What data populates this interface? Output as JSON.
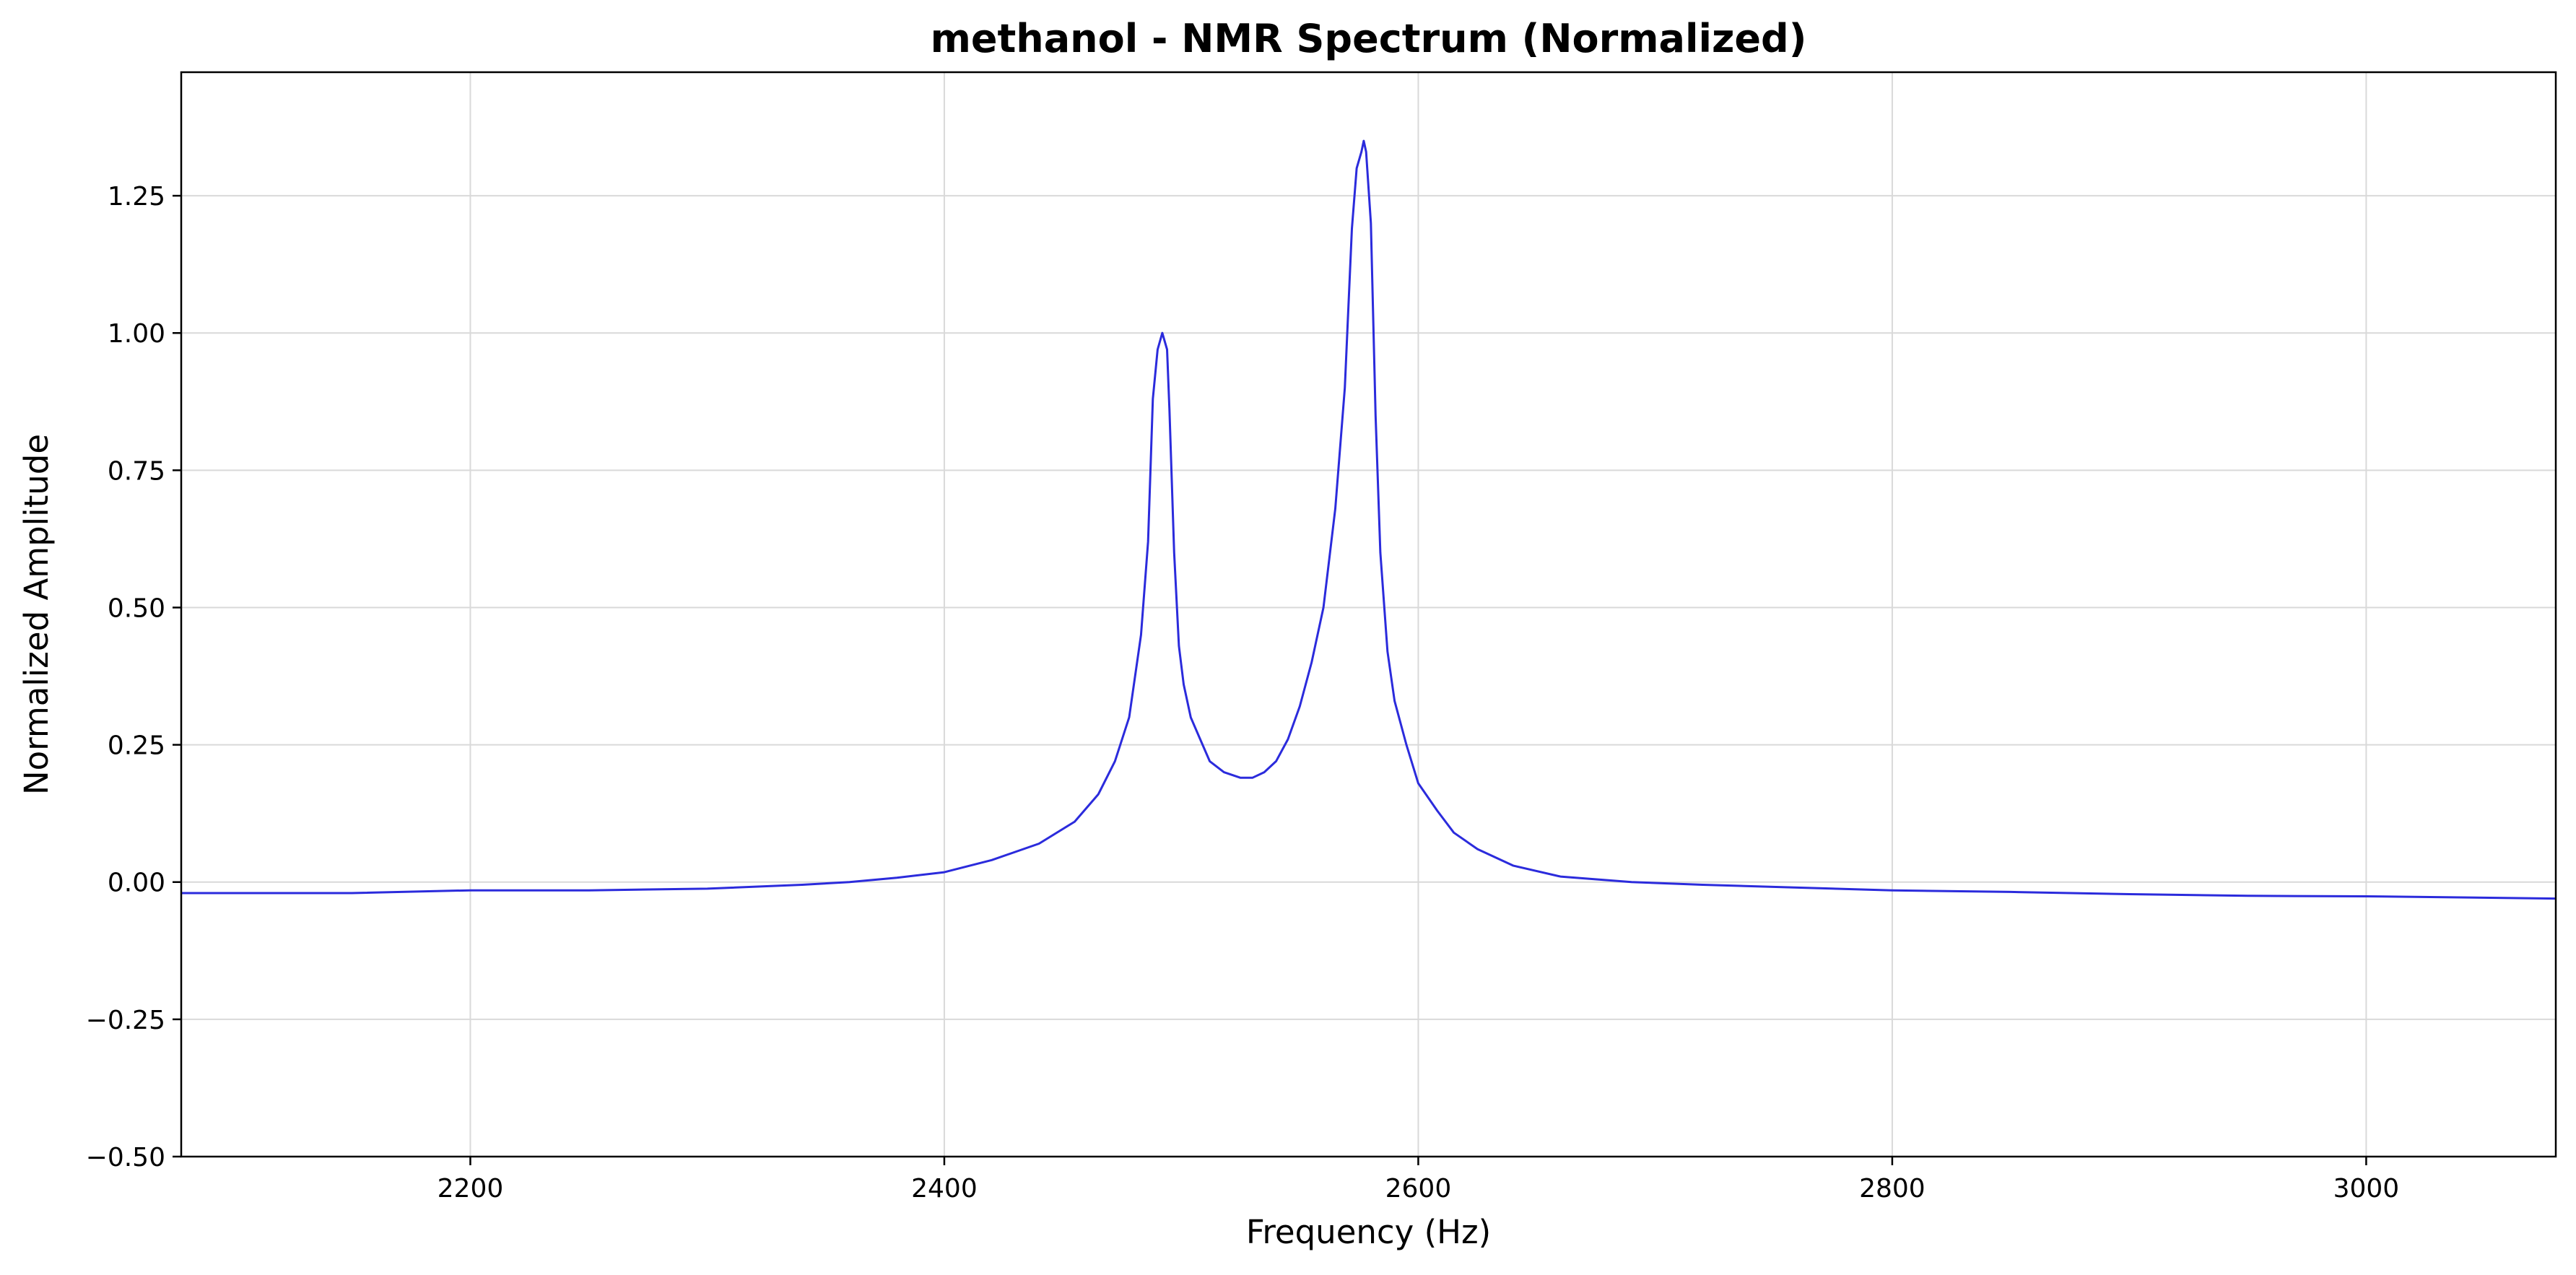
{
  "chart_data": {
    "type": "line",
    "title": "methanol - NMR Spectrum (Normalized)",
    "xlabel": "Frequency (Hz)",
    "ylabel": "Normalized Amplitude",
    "xlim": [
      2078,
      3080
    ],
    "ylim": [
      -0.5,
      1.475
    ],
    "x_ticks": [
      2200,
      2400,
      2600,
      2800,
      3000
    ],
    "y_ticks": [
      -0.5,
      -0.25,
      0.0,
      0.25,
      0.5,
      0.75,
      1.0,
      1.25
    ],
    "x_tick_labels": [
      "2200",
      "2400",
      "2600",
      "2800",
      "3000"
    ],
    "y_tick_labels": [
      "−0.50",
      "−0.25",
      "0.00",
      "0.25",
      "0.50",
      "0.75",
      "1.00",
      "1.25"
    ],
    "grid": true,
    "legend": "none",
    "series": [
      {
        "color": "#2b2bdc",
        "x": [
          2078,
          2100,
          2150,
          2200,
          2250,
          2300,
          2340,
          2360,
          2380,
          2400,
          2420,
          2440,
          2455,
          2465,
          2472,
          2478,
          2483,
          2486,
          2488,
          2490,
          2492,
          2494,
          2495,
          2497,
          2499,
          2501,
          2504,
          2508,
          2512,
          2518,
          2525,
          2530,
          2535,
          2540,
          2545,
          2550,
          2555,
          2560,
          2565,
          2569,
          2572,
          2574,
          2576,
          2577,
          2578,
          2580,
          2582,
          2584,
          2587,
          2590,
          2595,
          2600,
          2608,
          2615,
          2625,
          2640,
          2660,
          2690,
          2720,
          2760,
          2800,
          2850,
          2900,
          2950,
          3000,
          3040,
          3080
        ],
        "y": [
          -0.02,
          -0.02,
          -0.02,
          -0.015,
          -0.015,
          -0.012,
          -0.005,
          0.0,
          0.008,
          0.018,
          0.04,
          0.07,
          0.11,
          0.16,
          0.22,
          0.3,
          0.45,
          0.62,
          0.88,
          0.97,
          1.0,
          0.97,
          0.86,
          0.6,
          0.43,
          0.36,
          0.3,
          0.26,
          0.22,
          0.2,
          0.19,
          0.19,
          0.2,
          0.22,
          0.26,
          0.32,
          0.4,
          0.5,
          0.68,
          0.9,
          1.19,
          1.3,
          1.33,
          1.35,
          1.33,
          1.2,
          0.85,
          0.6,
          0.42,
          0.33,
          0.25,
          0.18,
          0.13,
          0.09,
          0.06,
          0.03,
          0.01,
          0.0,
          -0.005,
          -0.01,
          -0.015,
          -0.018,
          -0.022,
          -0.025,
          -0.026,
          -0.028,
          -0.03
        ]
      }
    ]
  }
}
